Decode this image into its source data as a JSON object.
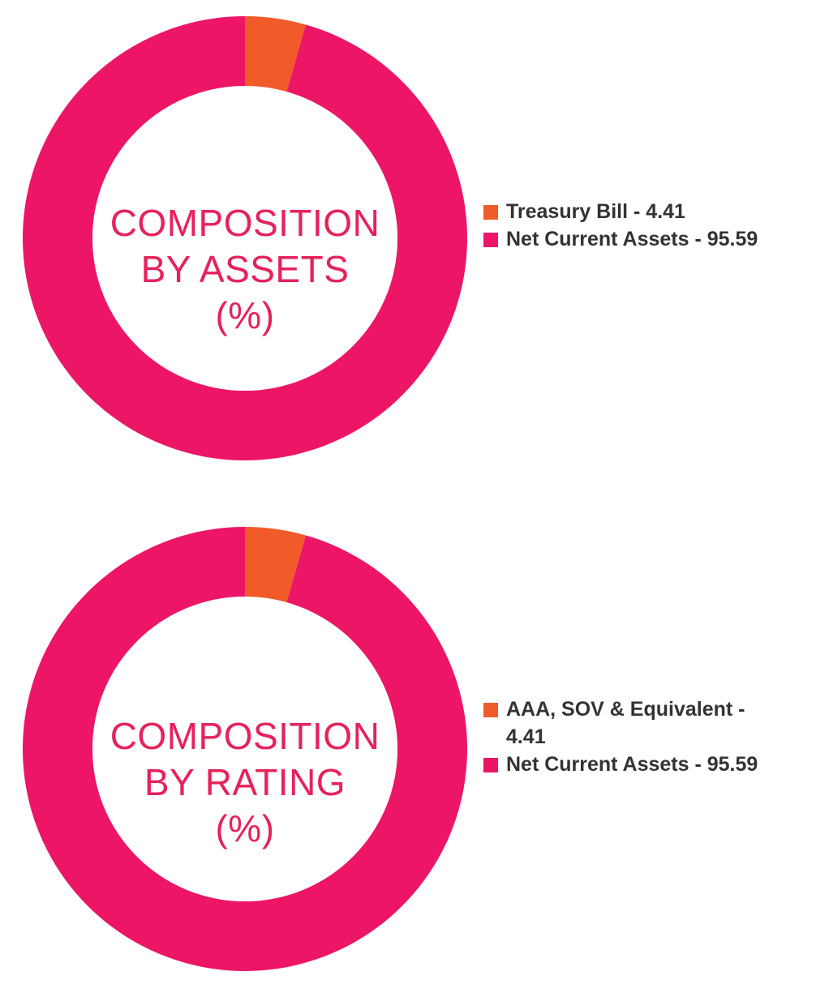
{
  "chart_data": [
    {
      "type": "pie",
      "title_lines": [
        "COMPOSITION",
        "BY ASSETS",
        "(%)"
      ],
      "slices": [
        {
          "label": "Treasury Bill - 4.41",
          "value": 4.41,
          "color": "#f15a29"
        },
        {
          "label": "Net Current Assets - 95.59",
          "value": 95.59,
          "color": "#ed1566"
        }
      ]
    },
    {
      "type": "pie",
      "title_lines": [
        "COMPOSITION",
        "BY RATING",
        "(%)"
      ],
      "slices": [
        {
          "label": "AAA, SOV & Equivalent - 4.41",
          "value": 4.41,
          "color": "#f15a29"
        },
        {
          "label": "Net Current Assets - 95.59",
          "value": 95.59,
          "color": "#ed1566"
        }
      ]
    }
  ],
  "colors": {
    "title_text": "#e6225c",
    "legend_text": "#333333",
    "hole": "#ffffff"
  }
}
